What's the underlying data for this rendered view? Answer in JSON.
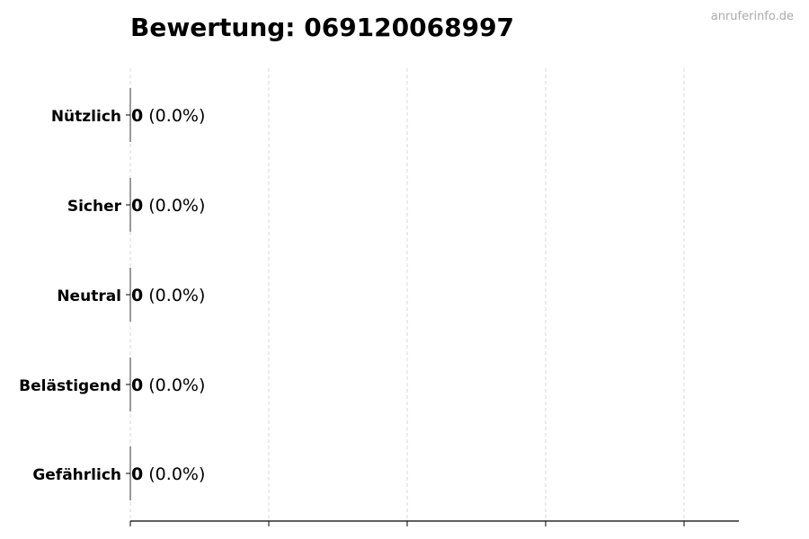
{
  "chart_data": {
    "type": "bar",
    "orientation": "horizontal",
    "title": "Bewertung: 069120068997",
    "watermark": "anruferinfo.de",
    "categories": [
      "Nützlich",
      "Sicher",
      "Neutral",
      "Belästigend",
      "Gefährlich"
    ],
    "values": [
      0,
      0,
      0,
      0,
      0
    ],
    "percent_labels": [
      "(0.0%)",
      "(0.0%)",
      "(0.0%)",
      "(0.0%)",
      "(0.0%)"
    ],
    "xlabel": "",
    "ylabel": "",
    "grid": "x, dashed",
    "x_tick_labels": false,
    "bar_color": "#333333",
    "grid_color": "#d9d9d9"
  }
}
